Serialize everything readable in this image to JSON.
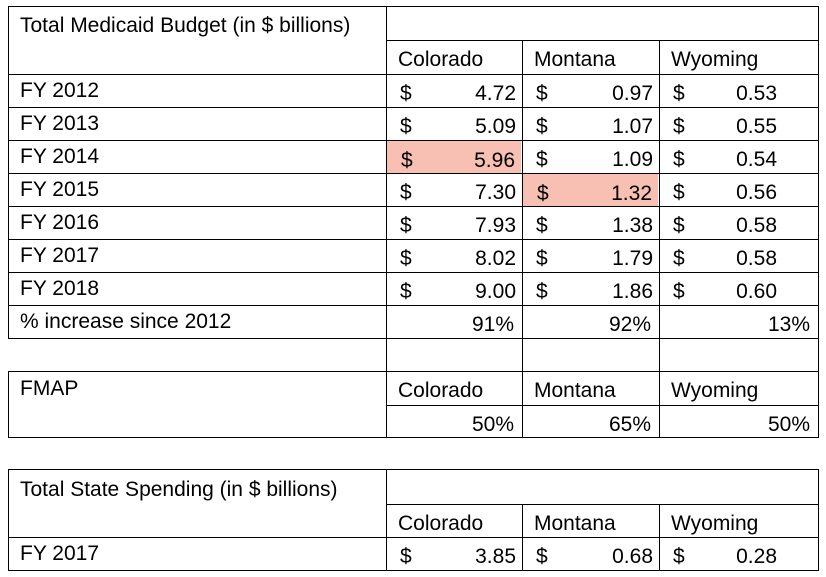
{
  "budget": {
    "title": "Total Medicaid Budget (in $ billions)",
    "states": [
      "Colorado",
      "Montana",
      "Wyoming"
    ],
    "currency": "$",
    "rows": [
      {
        "label": "FY 2012",
        "values": [
          "4.72",
          "0.97",
          "0.53"
        ]
      },
      {
        "label": "FY 2013",
        "values": [
          "5.09",
          "1.07",
          "0.55"
        ]
      },
      {
        "label": "FY 2014",
        "values": [
          "5.96",
          "1.09",
          "0.54"
        ]
      },
      {
        "label": "FY 2015",
        "values": [
          "7.30",
          "1.32",
          "0.56"
        ]
      },
      {
        "label": "FY 2016",
        "values": [
          "7.93",
          "1.38",
          "0.58"
        ]
      },
      {
        "label": "FY 2017",
        "values": [
          "8.02",
          "1.79",
          "0.58"
        ]
      },
      {
        "label": "FY 2018",
        "values": [
          "9.00",
          "1.86",
          "0.60"
        ]
      }
    ],
    "increase": {
      "label": "% increase since 2012",
      "values": [
        "91%",
        "92%",
        "13%"
      ]
    }
  },
  "fmap": {
    "title": "FMAP",
    "states": [
      "Colorado",
      "Montana",
      "Wyoming"
    ],
    "values": [
      "50%",
      "65%",
      "50%"
    ]
  },
  "spending": {
    "title": "Total State Spending (in $ billions)",
    "states": [
      "Colorado",
      "Montana",
      "Wyoming"
    ],
    "currency": "$",
    "rows": [
      {
        "label": "FY 2017",
        "values": [
          "3.85",
          "0.68",
          "0.28"
        ]
      }
    ]
  },
  "highlight_color": "#f8c0b3",
  "grid_color": "#000000"
}
